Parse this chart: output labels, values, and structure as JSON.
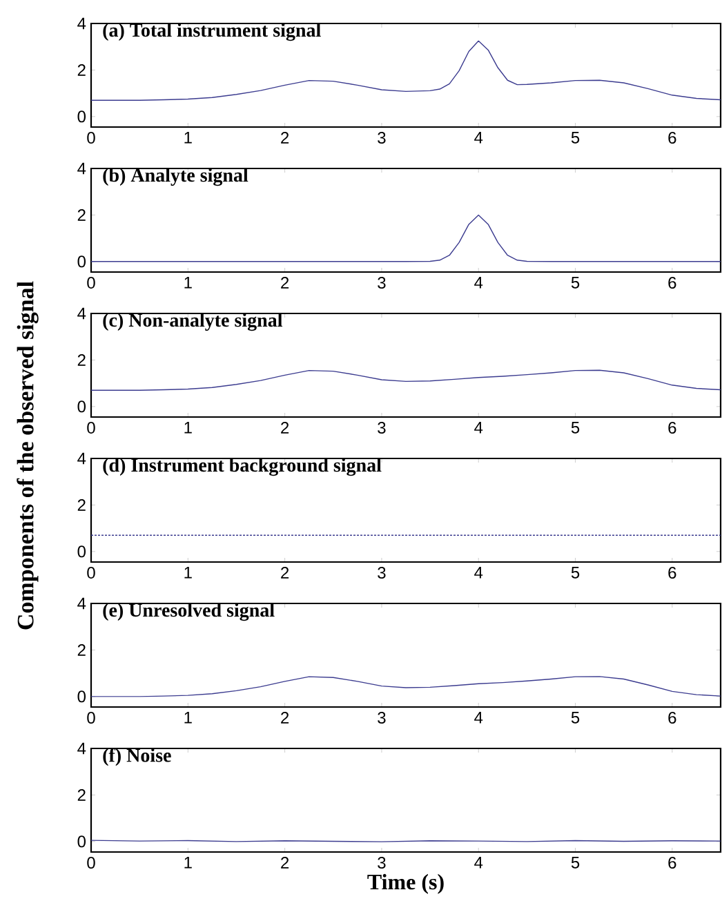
{
  "chart_data": [
    {
      "type": "line",
      "title": "(a) Total instrument signal",
      "xlim": [
        0,
        6.5
      ],
      "ylim": [
        -0.45,
        4
      ],
      "xticks": [
        0,
        1,
        2,
        3,
        4,
        5,
        6
      ],
      "yticks": [
        0,
        2,
        4
      ],
      "series": [
        {
          "color": "#3b3b8f",
          "x": [
            0,
            0.25,
            0.5,
            0.75,
            1,
            1.25,
            1.5,
            1.75,
            2,
            2.25,
            2.5,
            2.75,
            3,
            3.25,
            3.5,
            3.6,
            3.7,
            3.8,
            3.9,
            4,
            4.1,
            4.2,
            4.3,
            4.4,
            4.5,
            4.75,
            5,
            5.25,
            5.5,
            5.75,
            6,
            6.25,
            6.5
          ],
          "values": [
            0.7,
            0.7,
            0.7,
            0.72,
            0.75,
            0.82,
            0.95,
            1.12,
            1.35,
            1.55,
            1.52,
            1.35,
            1.15,
            1.08,
            1.11,
            1.18,
            1.41,
            1.97,
            2.8,
            3.25,
            2.86,
            2.1,
            1.56,
            1.37,
            1.38,
            1.45,
            1.55,
            1.56,
            1.45,
            1.2,
            0.92,
            0.78,
            0.72
          ]
        }
      ]
    },
    {
      "type": "line",
      "title": "(b) Analyte signal",
      "xlim": [
        0,
        6.5
      ],
      "ylim": [
        -0.45,
        4
      ],
      "xticks": [
        0,
        1,
        2,
        3,
        4,
        5,
        6
      ],
      "yticks": [
        0,
        2,
        4
      ],
      "series": [
        {
          "color": "#3b3b8f",
          "x": [
            0,
            3.25,
            3.5,
            3.6,
            3.7,
            3.8,
            3.9,
            4,
            4.1,
            4.2,
            4.3,
            4.4,
            4.5,
            4.75,
            6.5
          ],
          "values": [
            0,
            0,
            0.01,
            0.06,
            0.27,
            0.82,
            1.6,
            2,
            1.6,
            0.82,
            0.27,
            0.06,
            0.01,
            0,
            0
          ]
        }
      ]
    },
    {
      "type": "line",
      "title": "(c) Non-analyte signal",
      "ylabel": "Components of the observed signal",
      "xlim": [
        0,
        6.5
      ],
      "ylim": [
        -0.45,
        4
      ],
      "xticks": [
        0,
        1,
        2,
        3,
        4,
        5,
        6
      ],
      "yticks": [
        0,
        2,
        4
      ],
      "series": [
        {
          "color": "#3b3b8f",
          "x": [
            0,
            0.25,
            0.5,
            0.75,
            1,
            1.25,
            1.5,
            1.75,
            2,
            2.25,
            2.5,
            2.75,
            3,
            3.25,
            3.5,
            3.75,
            4,
            4.25,
            4.5,
            4.75,
            5,
            5.25,
            5.5,
            5.75,
            6,
            6.25,
            6.5
          ],
          "values": [
            0.7,
            0.7,
            0.7,
            0.72,
            0.75,
            0.82,
            0.95,
            1.12,
            1.35,
            1.55,
            1.52,
            1.35,
            1.15,
            1.08,
            1.1,
            1.17,
            1.25,
            1.3,
            1.37,
            1.45,
            1.55,
            1.56,
            1.45,
            1.2,
            0.92,
            0.78,
            0.72
          ]
        }
      ]
    },
    {
      "type": "line",
      "title": "(d) Instrument background signal",
      "xlim": [
        0,
        6.5
      ],
      "ylim": [
        -0.45,
        4
      ],
      "xticks": [
        0,
        1,
        2,
        3,
        4,
        5,
        6
      ],
      "yticks": [
        0,
        2,
        4
      ],
      "line_style": "dashed",
      "series": [
        {
          "color": "#3b3b8f",
          "x": [
            0,
            6.5
          ],
          "values": [
            0.7,
            0.7
          ]
        }
      ]
    },
    {
      "type": "line",
      "title": "(e) Unresolved signal",
      "xlim": [
        0,
        6.5
      ],
      "ylim": [
        -0.45,
        4
      ],
      "xticks": [
        0,
        1,
        2,
        3,
        4,
        5,
        6
      ],
      "yticks": [
        0,
        2,
        4
      ],
      "series": [
        {
          "color": "#3b3b8f",
          "x": [
            0,
            0.25,
            0.5,
            0.75,
            1,
            1.25,
            1.5,
            1.75,
            2,
            2.25,
            2.5,
            2.75,
            3,
            3.25,
            3.5,
            3.75,
            4,
            4.25,
            4.5,
            4.75,
            5,
            5.25,
            5.5,
            5.75,
            6,
            6.25,
            6.5
          ],
          "values": [
            0,
            0,
            0,
            0.02,
            0.05,
            0.12,
            0.25,
            0.42,
            0.65,
            0.85,
            0.82,
            0.65,
            0.45,
            0.38,
            0.4,
            0.47,
            0.55,
            0.6,
            0.67,
            0.75,
            0.85,
            0.86,
            0.75,
            0.5,
            0.22,
            0.08,
            0.02
          ]
        }
      ]
    },
    {
      "type": "line",
      "title": "(f) Noise",
      "xlabel": "Time (s)",
      "xlim": [
        0,
        6.5
      ],
      "ylim": [
        -0.45,
        4
      ],
      "xticks": [
        0,
        1,
        2,
        3,
        4,
        5,
        6
      ],
      "yticks": [
        0,
        2,
        4
      ],
      "series": [
        {
          "color": "#3b3b8f",
          "x": [
            0,
            0.5,
            1,
            1.5,
            2,
            2.5,
            3,
            3.5,
            4,
            4.5,
            5,
            5.5,
            6,
            6.5
          ],
          "values": [
            0.05,
            0.02,
            0.04,
            0,
            0.03,
            0.01,
            -0.01,
            0.03,
            0.02,
            0,
            0.04,
            0.01,
            0.03,
            0.02
          ]
        }
      ]
    }
  ]
}
